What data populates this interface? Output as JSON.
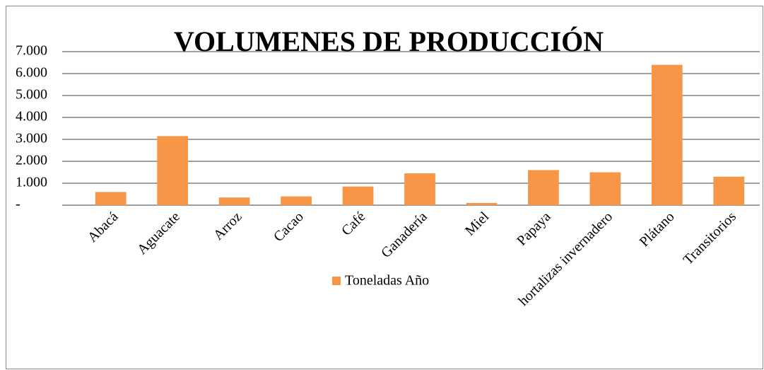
{
  "chart_data": {
    "type": "bar",
    "title": "VOLUMENES DE PRODUCCIÓN",
    "categories": [
      "Abacá",
      "Aguacate",
      "Arroz",
      "Cacao",
      "Café",
      "Ganadería",
      "Miel",
      "Papaya",
      "hortalizas invernadero",
      "Plátano",
      "Transitorios"
    ],
    "series": [
      {
        "name": "Toneladas Año",
        "color": "#f79646",
        "values": [
          600,
          3150,
          350,
          400,
          850,
          1450,
          100,
          1600,
          1500,
          6400,
          1300
        ]
      }
    ],
    "ylim": [
      0,
      7000
    ],
    "yticks": [
      {
        "value": 0,
        "label": "-"
      },
      {
        "value": 1000,
        "label": "1.000"
      },
      {
        "value": 2000,
        "label": "2.000"
      },
      {
        "value": 3000,
        "label": "3.000"
      },
      {
        "value": 4000,
        "label": "4.000"
      },
      {
        "value": 5000,
        "label": "5.000"
      },
      {
        "value": 6000,
        "label": "6.000"
      },
      {
        "value": 7000,
        "label": "7.000"
      }
    ],
    "grid": true,
    "legend": "bottom"
  }
}
